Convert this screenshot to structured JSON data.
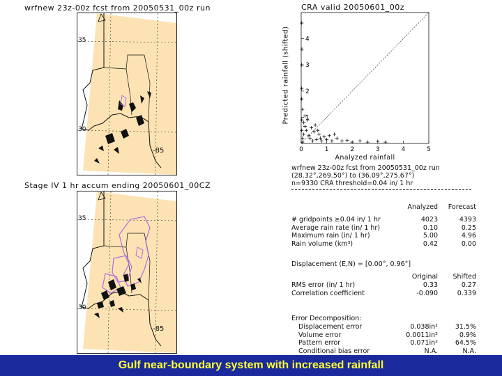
{
  "top_map": {
    "title": "wrfnew 23z-00z fcst from 20050531_00z run",
    "lat_label": "35",
    "lat_label_2": "30",
    "lon_label": "-85"
  },
  "bottom_map": {
    "title": "Stage IV 1 hr accum ending 20050601_00CZ",
    "lat_label": "35",
    "lat_label_2": "30",
    "lon_label": "-85"
  },
  "chart_data": {
    "type": "scatter",
    "title": "CRA valid 20050601_00z",
    "xlabel": "Analyzed rainfall",
    "ylabel": "Predicted rainfall (shifted)",
    "xlim": [
      0,
      5
    ],
    "ylim": [
      0,
      5
    ],
    "x_ticks": [
      "0",
      "1",
      "2",
      "3",
      "4",
      "5"
    ],
    "y_ticks": [
      "1",
      "2",
      "3",
      "4"
    ],
    "diagonal": true,
    "points": [
      [
        0.05,
        0.2
      ],
      [
        0.1,
        0.35
      ],
      [
        0.2,
        0.5
      ],
      [
        0.15,
        1.05
      ],
      [
        0.05,
        1.3
      ],
      [
        0.1,
        0.8
      ],
      [
        0.3,
        0.3
      ],
      [
        0.4,
        0.6
      ],
      [
        0.5,
        0.45
      ],
      [
        0.6,
        0.15
      ],
      [
        0.7,
        0.35
      ],
      [
        0.8,
        0.1
      ],
      [
        0.9,
        0.25
      ],
      [
        1.0,
        0.15
      ],
      [
        1.2,
        0.1
      ],
      [
        1.4,
        0.2
      ],
      [
        1.6,
        0.1
      ],
      [
        1.8,
        0.12
      ],
      [
        2.0,
        0.05
      ],
      [
        2.3,
        0.1
      ],
      [
        2.6,
        0.05
      ],
      [
        3.0,
        0.08
      ],
      [
        3.3,
        0.05
      ],
      [
        0.02,
        0.5
      ],
      [
        0.02,
        0.9
      ],
      [
        0.02,
        1.7
      ],
      [
        0.02,
        2.1
      ],
      [
        0.02,
        3.0
      ],
      [
        0.03,
        3.6
      ],
      [
        0.02,
        4.6
      ],
      [
        0.25,
        0.9
      ],
      [
        0.35,
        0.2
      ],
      [
        0.55,
        0.7
      ],
      [
        0.65,
        0.5
      ],
      [
        1.1,
        0.3
      ],
      [
        1.3,
        0.35
      ],
      [
        0.45,
        0.1
      ],
      [
        0.75,
        0.2
      ],
      [
        0.15,
        0.65
      ],
      [
        0.05,
        0.05
      ]
    ]
  },
  "stats": {
    "header_line1": "wrfnew 23z-00z fcst from 20050531_00z run",
    "header_line2": "(28.32°,269.50°) to (36.09°,275.67°)",
    "header_line3": "n=9330   CRA threshold=0.04 in/ 1 hr",
    "col_analyzed": "Analyzed",
    "col_forecast": "Forecast",
    "rows1": [
      {
        "label": "# gridpoints ≥0.04 in/ 1 hr",
        "a": "4023",
        "b": "4393"
      },
      {
        "label": "Average rain rate (in/ 1 hr)",
        "a": "0.10",
        "b": "0.25"
      },
      {
        "label": "Maximum rain (in/ 1 hr)",
        "a": "5.00",
        "b": "4.96"
      },
      {
        "label": "Rain volume (km³)",
        "a": "0.42",
        "b": "0.00"
      }
    ],
    "displacement": "Displacement (E,N) = [0.00°, 0.96°]",
    "col_original": "Original",
    "col_shifted": "Shifted",
    "rows2": [
      {
        "label": "RMS error (in/ 1 hr)",
        "a": "0.33",
        "b": "0.27"
      },
      {
        "label": "Correlation coefficient",
        "a": "-0.090",
        "b": "0.339"
      }
    ],
    "decomp_title": "Error Decomposition:",
    "rows3": [
      {
        "label": "Displacement error",
        "a": "0.038in²",
        "b": "31.5%"
      },
      {
        "label": "Volume error",
        "a": "0.0011in²",
        "b": "0.9%"
      },
      {
        "label": "Pattern error",
        "a": "0.071in²",
        "b": "64.5%"
      },
      {
        "label": "Conditional bias error",
        "a": "N.A.",
        "b": "N.A."
      }
    ]
  },
  "footer": {
    "caption": "Gulf near-boundary system with increased rainfall"
  },
  "colors": {
    "domain_fill": "#fde3b4",
    "analyzed_contour": "#b06ee0",
    "footer_bg": "#1a2a9c",
    "footer_text": "#ffff33"
  }
}
